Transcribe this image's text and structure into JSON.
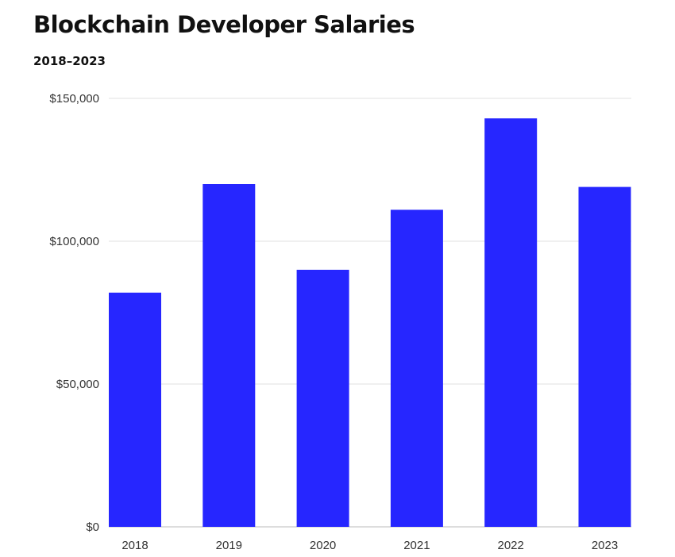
{
  "chart_data": {
    "type": "bar",
    "title": "Blockchain Developer Salaries",
    "subtitle": "2018–2023",
    "categories": [
      "2018",
      "2019",
      "2020",
      "2021",
      "2022",
      "2023"
    ],
    "values": [
      82000,
      120000,
      90000,
      111000,
      143000,
      119000
    ],
    "ylim": [
      0,
      150000
    ],
    "yticks": [
      0,
      50000,
      100000,
      150000
    ],
    "ytick_labels": [
      "$0",
      "$50,000",
      "$100,000",
      "$150,000"
    ],
    "xlabel": "",
    "ylabel": "",
    "grid": true,
    "bar_color": "#2626ff"
  }
}
